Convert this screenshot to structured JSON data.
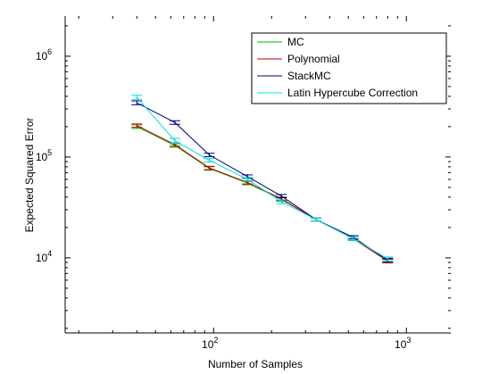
{
  "chart_data": {
    "type": "line",
    "xlabel": "Number of Samples",
    "ylabel": "Expected Squared Error",
    "xscale": "log",
    "yscale": "log",
    "xlim": [
      17,
      1700
    ],
    "ylim": [
      1800,
      2500000
    ],
    "x_ticks": [
      {
        "value": 100,
        "base": "10",
        "exp": "2"
      },
      {
        "value": 1000,
        "base": "10",
        "exp": "3"
      }
    ],
    "y_ticks": [
      {
        "value": 10000,
        "base": "10",
        "exp": "4"
      },
      {
        "value": 100000,
        "base": "10",
        "exp": "5"
      },
      {
        "value": 1000000,
        "base": "10",
        "exp": "6"
      }
    ],
    "grid": false,
    "legend_position": "top-right",
    "x": [
      40,
      63,
      95,
      150,
      225,
      340,
      530,
      800
    ],
    "series": [
      {
        "name": "MC",
        "color": "#00c000",
        "values": [
          200000,
          130000,
          77000,
          55000,
          38000,
          24000,
          15500,
          9500
        ],
        "errors": [
          8000,
          5000,
          3000,
          2000,
          1500,
          800,
          600,
          400
        ]
      },
      {
        "name": "Polynomial",
        "color": "#c00000",
        "values": [
          205000,
          133000,
          78000,
          56000,
          38500,
          24000,
          15500,
          9300
        ],
        "errors": [
          8000,
          5000,
          3000,
          2000,
          1500,
          800,
          600,
          400
        ]
      },
      {
        "name": "StackMC",
        "color": "#00007f",
        "values": [
          345000,
          220000,
          105000,
          64000,
          41000,
          24000,
          16000,
          9500
        ],
        "errors": [
          15000,
          9000,
          4000,
          2500,
          1500,
          800,
          600,
          400
        ]
      },
      {
        "name": "Latin Hypercube Correction",
        "color": "#00e0e0",
        "values": [
          390000,
          145000,
          93000,
          60000,
          36000,
          24000,
          15500,
          9800
        ],
        "errors": [
          20000,
          8000,
          4000,
          2500,
          1500,
          800,
          600,
          400
        ]
      }
    ]
  }
}
